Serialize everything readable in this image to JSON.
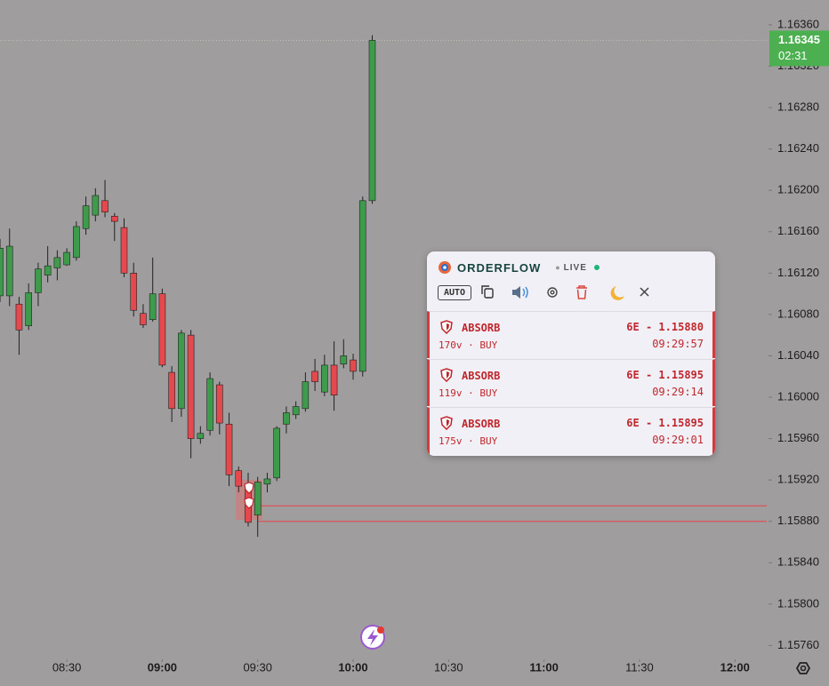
{
  "chart_data": {
    "type": "candlestick",
    "x": [
      "08:09",
      "08:12",
      "08:15",
      "08:18",
      "08:21",
      "08:24",
      "08:27",
      "08:30",
      "08:33",
      "08:36",
      "08:39",
      "08:42",
      "08:45",
      "08:48",
      "08:51",
      "08:54",
      "08:57",
      "09:00",
      "09:03",
      "09:06",
      "09:09",
      "09:12",
      "09:15",
      "09:18",
      "09:21",
      "09:24",
      "09:27",
      "09:30",
      "09:33",
      "09:36",
      "09:39",
      "09:42",
      "09:45",
      "09:48",
      "09:51",
      "09:54",
      "09:57",
      "10:00",
      "10:03",
      "10:06"
    ],
    "open": [
      1.16098,
      1.16098,
      1.1609,
      1.16069,
      1.16101,
      1.16118,
      1.16125,
      1.16128,
      1.16135,
      1.16163,
      1.16176,
      1.1619,
      1.16175,
      1.16164,
      1.1612,
      1.16081,
      1.16075,
      1.161,
      1.16024,
      1.15989,
      1.1606,
      1.1596,
      1.15968,
      1.16012,
      1.15974,
      1.15929,
      1.15916,
      1.15886,
      1.15916,
      1.15922,
      1.15974,
      1.15983,
      1.15989,
      1.16025,
      1.16005,
      1.16031,
      1.16032,
      1.16036,
      1.16025,
      1.1619
    ],
    "high": [
      1.16153,
      1.16163,
      1.16097,
      1.1611,
      1.1613,
      1.16146,
      1.16142,
      1.16144,
      1.1617,
      1.16194,
      1.16202,
      1.1621,
      1.16178,
      1.16173,
      1.1613,
      1.1609,
      1.16135,
      1.16105,
      1.1603,
      1.16065,
      1.16065,
      1.15972,
      1.16024,
      1.16015,
      1.15985,
      1.15933,
      1.15927,
      1.15923,
      1.15927,
      1.15972,
      1.15991,
      1.15996,
      1.16024,
      1.16037,
      1.16041,
      1.16054,
      1.16056,
      1.16042,
      1.16194,
      1.1635
    ],
    "low": [
      1.16092,
      1.16088,
      1.16041,
      1.16065,
      1.16088,
      1.16111,
      1.16113,
      1.16127,
      1.16132,
      1.16157,
      1.1617,
      1.16174,
      1.16151,
      1.16116,
      1.16078,
      1.16067,
      1.16073,
      1.16029,
      1.15976,
      1.15981,
      1.15941,
      1.15955,
      1.15963,
      1.15964,
      1.15914,
      1.15908,
      1.15875,
      1.15865,
      1.15908,
      1.15919,
      1.15965,
      1.15979,
      1.15986,
      1.16006,
      1.16001,
      1.15987,
      1.16028,
      1.16017,
      1.1602,
      1.16187
    ],
    "close": [
      1.16144,
      1.16146,
      1.16065,
      1.16101,
      1.16124,
      1.16127,
      1.16135,
      1.1614,
      1.16165,
      1.16185,
      1.16195,
      1.16179,
      1.1617,
      1.1612,
      1.16084,
      1.1607,
      1.161,
      1.16031,
      1.15989,
      1.16062,
      1.1596,
      1.15965,
      1.16018,
      1.15975,
      1.15925,
      1.15914,
      1.15879,
      1.15918,
      1.15921,
      1.1597,
      1.15985,
      1.15991,
      1.16015,
      1.16015,
      1.16031,
      1.16002,
      1.1604,
      1.16025,
      1.1619,
      1.16345
    ],
    "up_color": "#3f9b4c",
    "down_color": "#e5484d",
    "xlim": [
      "08:09",
      "12:10"
    ],
    "xticks": [
      "08:30",
      "09:00",
      "09:30",
      "10:00",
      "10:30",
      "11:00",
      "11:30",
      "12:00"
    ],
    "ylim": [
      1.15744,
      1.16384
    ],
    "yticks": [
      {
        "value": 1.1636,
        "label": "1.16360"
      },
      {
        "value": 1.1632,
        "label": "1.16320"
      },
      {
        "value": 1.1628,
        "label": "1.16280"
      },
      {
        "value": 1.1624,
        "label": "1.16240"
      },
      {
        "value": 1.162,
        "label": "1.16200"
      },
      {
        "value": 1.1616,
        "label": "1.16160"
      },
      {
        "value": 1.1612,
        "label": "1.16120"
      },
      {
        "value": 1.1608,
        "label": "1.16080"
      },
      {
        "value": 1.1604,
        "label": "1.16040"
      },
      {
        "value": 1.16,
        "label": "1.16000"
      },
      {
        "value": 1.1596,
        "label": "1.15960"
      },
      {
        "value": 1.1592,
        "label": "1.15920"
      },
      {
        "value": 1.1588,
        "label": "1.15880"
      },
      {
        "value": 1.1584,
        "label": "1.15840"
      },
      {
        "value": 1.158,
        "label": "1.15800"
      },
      {
        "value": 1.1576,
        "label": "1.15760"
      }
    ],
    "levels": [
      1.15895,
      1.1588
    ],
    "level_color": "#e8434a",
    "last_price": 1.16345,
    "countdown": "02:31",
    "last_color": "#4caf50"
  },
  "panel": {
    "title": "ORDERFLOW",
    "status": "LIVE",
    "mode": "AUTO",
    "alerts": [
      {
        "type": "ABSORB",
        "volume": "170v",
        "side": "BUY",
        "symbol_price": "6E - 1.15880",
        "time": "09:29:57"
      },
      {
        "type": "ABSORB",
        "volume": "119v",
        "side": "BUY",
        "symbol_price": "6E - 1.15895",
        "time": "09:29:14"
      },
      {
        "type": "ABSORB",
        "volume": "175v",
        "side": "BUY",
        "symbol_price": "6E - 1.15895",
        "time": "09:29:01"
      }
    ]
  }
}
